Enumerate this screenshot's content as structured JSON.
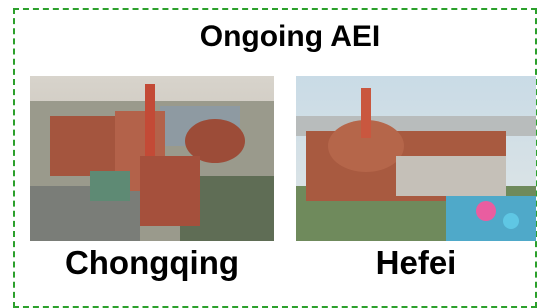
{
  "title": "Ongoing AEI",
  "items": [
    {
      "label": "Chongqing"
    },
    {
      "label": "Hefei"
    }
  ]
}
